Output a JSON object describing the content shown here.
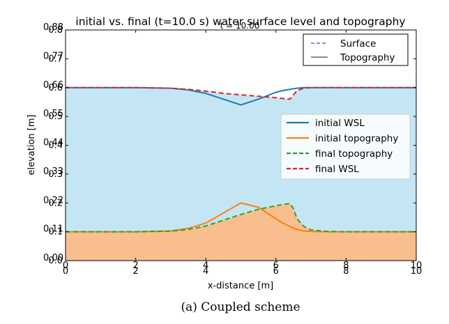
{
  "chart_data": {
    "type": "area",
    "title": "initial vs. final (t=10.0 s) water surface level and topography",
    "overlay_title": "t = 10.00",
    "xlabel": "x-distance [m]",
    "ylabel": "elevation [m]",
    "xlim": [
      0,
      10
    ],
    "ylim": [
      0,
      0.8
    ],
    "xticks": [
      "0",
      "2",
      "4",
      "6",
      "8",
      "10"
    ],
    "xticks_overlay": [
      "0",
      "2",
      "4",
      "6",
      "8",
      "10"
    ],
    "yticks": [
      "0.0",
      "0.1",
      "0.2",
      "0.3",
      "0.4",
      "0.5",
      "0.6",
      "0.7",
      "0.8"
    ],
    "yticks_overlay": [
      "0.00",
      "0.11",
      "0.22",
      "0.33",
      "0.44",
      "0.55",
      "0.66",
      "0.77",
      "0.88"
    ],
    "grid": false,
    "water_fill_color": "#c4e6f4",
    "sediment_fill_color": "#f8be8e",
    "x": [
      0,
      2,
      3,
      3.5,
      4,
      4.5,
      5,
      5.5,
      6,
      6.2,
      6.4,
      6.5,
      6.6,
      6.8,
      7,
      7.5,
      8,
      9,
      10
    ],
    "series": [
      {
        "name": "initial WSL",
        "color": "#1f77b4",
        "dash": "solid",
        "values": [
          0.6,
          0.6,
          0.598,
          0.592,
          0.58,
          0.56,
          0.54,
          0.56,
          0.584,
          0.59,
          0.594,
          0.596,
          0.598,
          0.6,
          0.6,
          0.6,
          0.6,
          0.6,
          0.6
        ]
      },
      {
        "name": "initial topography",
        "color": "#ff7f0e",
        "dash": "solid",
        "values": [
          0.1,
          0.1,
          0.103,
          0.112,
          0.13,
          0.165,
          0.2,
          0.185,
          0.145,
          0.13,
          0.118,
          0.112,
          0.108,
          0.103,
          0.101,
          0.1,
          0.1,
          0.1,
          0.1
        ]
      },
      {
        "name": "final topography",
        "color": "#2ca02c",
        "dash": "dashed",
        "values": [
          0.1,
          0.1,
          0.102,
          0.108,
          0.12,
          0.14,
          0.16,
          0.178,
          0.19,
          0.195,
          0.198,
          0.18,
          0.145,
          0.118,
          0.106,
          0.101,
          0.1,
          0.1,
          0.1
        ]
      },
      {
        "name": "final WSL",
        "color": "#d62728",
        "dash": "dashed",
        "values": [
          0.6,
          0.6,
          0.598,
          0.594,
          0.588,
          0.58,
          0.575,
          0.57,
          0.565,
          0.562,
          0.56,
          0.575,
          0.59,
          0.598,
          0.6,
          0.6,
          0.6,
          0.6,
          0.6
        ]
      }
    ],
    "legend_main": {
      "placement": "center-right",
      "entries": [
        "initial WSL",
        "initial topography",
        "final topography",
        "final WSL"
      ]
    },
    "legend_overlay": {
      "placement": "top-right",
      "entries": [
        {
          "label": "Surface",
          "color": "#3b4bd8",
          "dash": "dashed"
        },
        {
          "label": "Topography",
          "color": "#444444",
          "dash": "solid"
        }
      ]
    }
  },
  "caption": "(a)  Coupled scheme"
}
